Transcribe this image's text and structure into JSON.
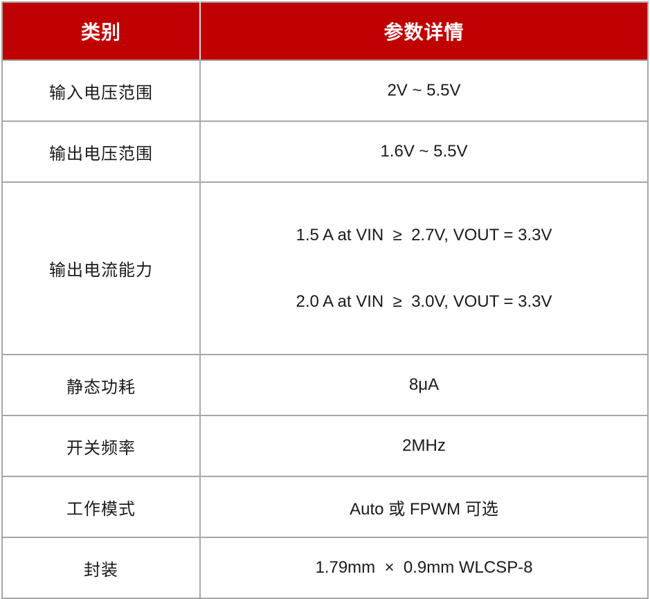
{
  "table": {
    "colors": {
      "header_bg": "#c00000",
      "header_text": "#ffffff",
      "grid_border": "#a6a6a6",
      "header_divider": "#d9d9d9",
      "body_text": "#1a1a1a"
    },
    "header": {
      "category": "类别",
      "details": "参数详情"
    },
    "rows": [
      {
        "label": "输入电压范围",
        "value": "2V ~ 5.5V"
      },
      {
        "label": "输出电压范围",
        "value": "1.6V ~ 5.5V"
      },
      {
        "label": "输出电流能力",
        "value_lines": [
          "1.5 A at VIN  ≥  2.7V, VOUT = 3.3V",
          "2.0 A at VIN  ≥  3.0V, VOUT = 3.3V"
        ]
      },
      {
        "label": "静态功耗",
        "value": "8μA"
      },
      {
        "label": "开关频率",
        "value": "2MHz"
      },
      {
        "label": "工作模式",
        "value": "Auto 或 FPWM 可选"
      },
      {
        "label": "封装",
        "value": "1.79mm  ×  0.9mm WLCSP-8"
      }
    ]
  }
}
